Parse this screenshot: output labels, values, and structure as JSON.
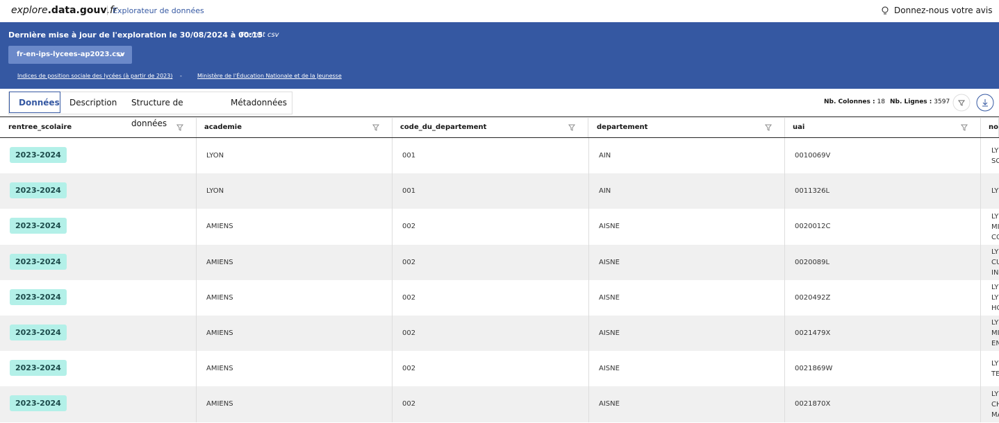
{
  "header": {
    "logo": [
      "explore",
      ".data.gouv",
      ".fr"
    ],
    "app_name": "Explorateur de données",
    "feedback": "Donnez-nous votre avis"
  },
  "banner": {
    "update": "Dernière mise à jour de l'exploration le 30/08/2024 à 00:15",
    "separator": "-",
    "format": "Format csv",
    "file": "fr-en-ips-lycees-ap2023.csv",
    "dataset": "Indices de position sociale des lycées (à partir de 2023)",
    "separator2": "-",
    "organization": "Ministère de l'Éducation Nationale et de la Jeunesse"
  },
  "tabs": [
    "Données",
    "Description",
    "Structure de données",
    "Métadonnées"
  ],
  "stats": {
    "columns_label": "Nb. Colonnes :",
    "columns": 18,
    "rows_label": "Nb. Lignes :",
    "rows": 3597
  },
  "table": {
    "columns": [
      "rentree_scolaire",
      "academie",
      "code_du_departement",
      "departement",
      "uai",
      "no"
    ],
    "rows": [
      [
        "2023-2024",
        "LYON",
        "001",
        "AIN",
        "0010069V",
        [
          "LY",
          "SC"
        ]
      ],
      [
        "2023-2024",
        "LYON",
        "001",
        "AIN",
        "0011326L",
        [
          "LY"
        ]
      ],
      [
        "2023-2024",
        "AMIENS",
        "002",
        "AISNE",
        "0020012C",
        [
          "LY",
          "MI",
          "CO"
        ]
      ],
      [
        "2023-2024",
        "AMIENS",
        "002",
        "AISNE",
        "0020089L",
        [
          "LY",
          "CU",
          "IN"
        ]
      ],
      [
        "2023-2024",
        "AMIENS",
        "002",
        "AISNE",
        "0020492Z",
        [
          "LY",
          "LY",
          "HO"
        ]
      ],
      [
        "2023-2024",
        "AMIENS",
        "002",
        "AISNE",
        "0021479X",
        [
          "LY",
          "MI",
          "EN"
        ]
      ],
      [
        "2023-2024",
        "AMIENS",
        "002",
        "AISNE",
        "0021869W",
        [
          "LY",
          "TE"
        ]
      ],
      [
        "2023-2024",
        "AMIENS",
        "002",
        "AISNE",
        "0021870X",
        [
          "LY",
          "CH",
          "MA"
        ]
      ]
    ]
  }
}
